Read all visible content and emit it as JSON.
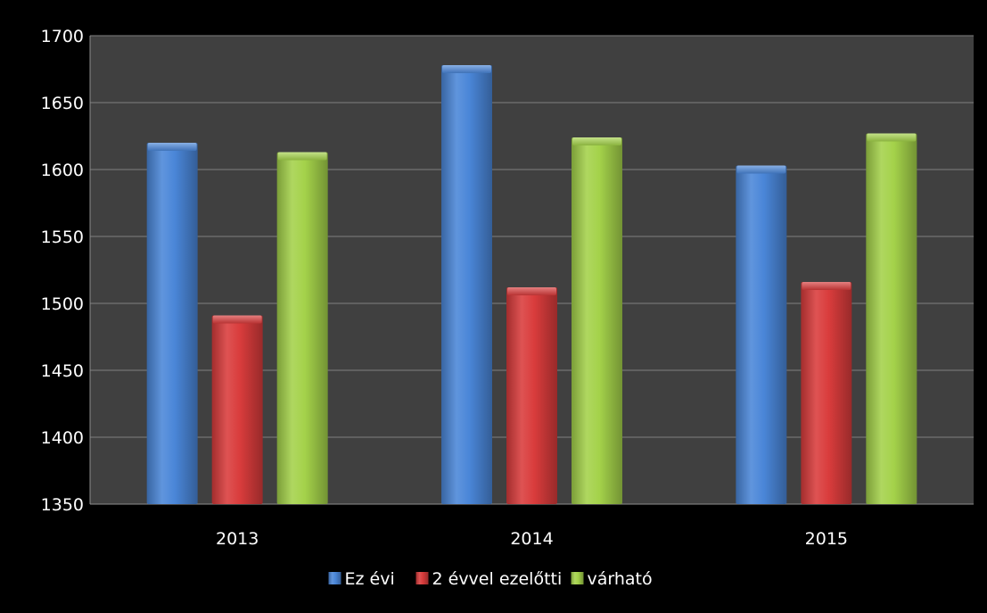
{
  "chart_data": {
    "type": "bar",
    "categories": [
      "2013",
      "2014",
      "2015"
    ],
    "series": [
      {
        "name": "Ez évi",
        "values": [
          1620,
          1678,
          1603
        ],
        "color": "#4a86d8"
      },
      {
        "name": "2 évvel ezelőtti",
        "values": [
          1491,
          1512,
          1516
        ],
        "color": "#d93c3c"
      },
      {
        "name": "várható",
        "values": [
          1613,
          1624,
          1627
        ],
        "color": "#a4d24a"
      }
    ],
    "ylim": [
      1350,
      1700
    ],
    "yticks": [
      1350,
      1400,
      1450,
      1500,
      1550,
      1600,
      1650,
      1700
    ],
    "grid": true,
    "legend_position": "bottom",
    "plot_background": "#404040",
    "page_background": "#000000",
    "gridline_color": "#7f7f7f",
    "text_color": "#ffffff",
    "title": "",
    "xlabel": "",
    "ylabel": ""
  }
}
